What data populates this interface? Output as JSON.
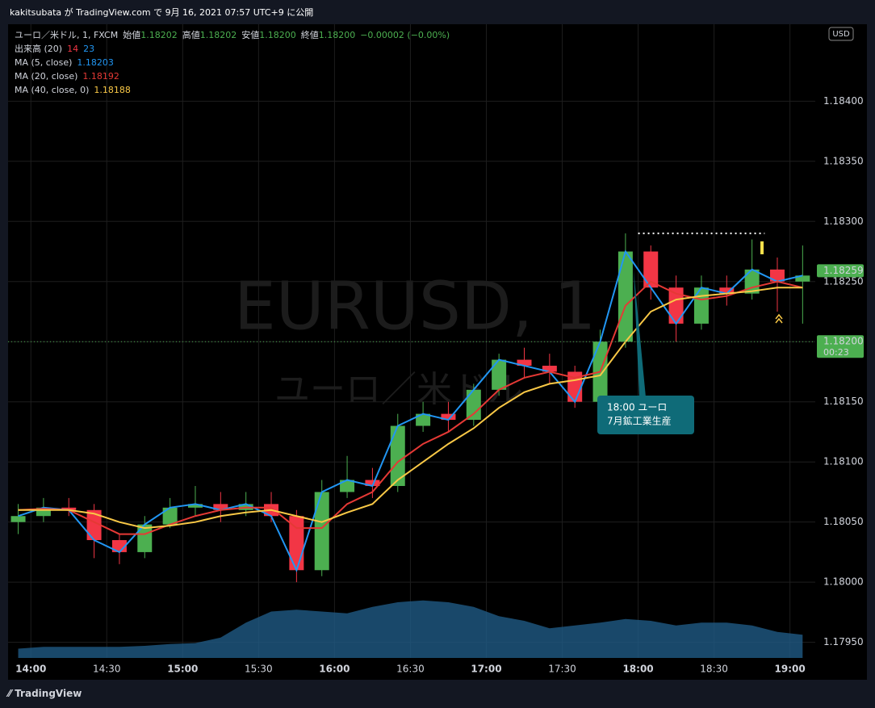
{
  "header": {
    "credit": "kakitsubata が TradingView.com で 9月 16, 2021 07:57 UTC+9 に公開"
  },
  "legend": {
    "symbol": "ユーロ／米ドル, 1, FXCM",
    "open_label": "始値",
    "open": "1.18202",
    "high_label": "高値",
    "high": "1.18202",
    "low_label": "安値",
    "low": "1.18200",
    "close_label": "終値",
    "close": "1.18200",
    "change": "−0.00002 (−0.00%)",
    "volume_label": "出来高 (20)",
    "volume_a": "14",
    "volume_b": "23"
  },
  "watermark": {
    "symbol": "EURUSD, 1",
    "name": "ユーロ／米ドル"
  },
  "currency": "USD",
  "annotation": {
    "line1": "18:00 ユーロ",
    "line2": "7月鉱工業生産"
  },
  "footer": "TradingView",
  "chart_data": {
    "type": "candlestick",
    "x": [
      "13:55",
      "14:05",
      "14:15",
      "14:25",
      "14:35",
      "14:45",
      "14:55",
      "15:05",
      "15:15",
      "15:25",
      "15:35",
      "15:45",
      "15:55",
      "16:05",
      "16:15",
      "16:25",
      "16:35",
      "16:45",
      "16:55",
      "17:05",
      "17:15",
      "17:25",
      "17:35",
      "17:45",
      "17:55",
      "18:05",
      "18:15",
      "18:25",
      "18:35",
      "18:45",
      "18:55",
      "19:05"
    ],
    "open": [
      1.1805,
      1.18055,
      1.18062,
      1.1806,
      1.18035,
      1.18025,
      1.18048,
      1.18062,
      1.18065,
      1.1806,
      1.18065,
      1.18055,
      1.1801,
      1.18075,
      1.18085,
      1.1808,
      1.1813,
      1.1814,
      1.18135,
      1.1816,
      1.18185,
      1.1818,
      1.18175,
      1.1815,
      1.182,
      1.18275,
      1.18245,
      1.18215,
      1.18245,
      1.1824,
      1.1826,
      1.1825
    ],
    "high": [
      1.18065,
      1.1807,
      1.1807,
      1.18065,
      1.1804,
      1.18055,
      1.1807,
      1.1808,
      1.18075,
      1.18075,
      1.18075,
      1.1806,
      1.18085,
      1.18105,
      1.18095,
      1.1814,
      1.1815,
      1.1815,
      1.18165,
      1.1819,
      1.18195,
      1.1819,
      1.1818,
      1.1821,
      1.1829,
      1.1828,
      1.18255,
      1.18255,
      1.18255,
      1.18285,
      1.1827,
      1.1828
    ],
    "low": [
      1.1804,
      1.1805,
      1.18055,
      1.1802,
      1.18015,
      1.1802,
      1.18045,
      1.18055,
      1.1805,
      1.18055,
      1.1805,
      1.18,
      1.18005,
      1.1807,
      1.1807,
      1.18075,
      1.18125,
      1.18125,
      1.1813,
      1.18155,
      1.1817,
      1.18165,
      1.18145,
      1.18145,
      1.18195,
      1.18235,
      1.182,
      1.1821,
      1.1823,
      1.18235,
      1.18225,
      1.18215
    ],
    "close": [
      1.18055,
      1.18062,
      1.1806,
      1.18035,
      1.18025,
      1.18048,
      1.18062,
      1.18065,
      1.1806,
      1.18065,
      1.18055,
      1.1801,
      1.18075,
      1.18085,
      1.1808,
      1.1813,
      1.1814,
      1.18135,
      1.1816,
      1.18185,
      1.1818,
      1.18175,
      1.1815,
      1.182,
      1.18275,
      1.18245,
      1.18215,
      1.18245,
      1.1824,
      1.1826,
      1.1825,
      1.18255
    ],
    "up_color": "#4caf50",
    "down_color": "#f23645",
    "series": [
      {
        "name": "MA (5, close)",
        "last_label": "1.18203",
        "color": "#2196f3",
        "values": [
          1.18055,
          1.18062,
          1.1806,
          1.18035,
          1.18025,
          1.18048,
          1.18062,
          1.18065,
          1.1806,
          1.18065,
          1.18055,
          1.1801,
          1.18075,
          1.18085,
          1.1808,
          1.1813,
          1.1814,
          1.18135,
          1.1816,
          1.18185,
          1.1818,
          1.18175,
          1.1815,
          1.182,
          1.18275,
          1.18245,
          1.18215,
          1.18245,
          1.1824,
          1.1826,
          1.1825,
          1.18255
        ]
      },
      {
        "name": "MA (20, close)",
        "last_label": "1.18192",
        "color": "#e53935",
        "values": [
          1.1806,
          1.18061,
          1.1806,
          1.1805,
          1.1804,
          1.1804,
          1.18048,
          1.18055,
          1.1806,
          1.18062,
          1.18062,
          1.18045,
          1.18045,
          1.18065,
          1.18075,
          1.181,
          1.18115,
          1.18125,
          1.1814,
          1.1816,
          1.1817,
          1.18175,
          1.1817,
          1.18175,
          1.1823,
          1.1825,
          1.1824,
          1.18235,
          1.18238,
          1.18245,
          1.1825,
          1.18245
        ]
      },
      {
        "name": "MA (40, close, 0)",
        "last_label": "1.18188",
        "color": "#f9c846",
        "values": [
          1.1806,
          1.1806,
          1.1806,
          1.18057,
          1.1805,
          1.18045,
          1.18047,
          1.1805,
          1.18055,
          1.18058,
          1.1806,
          1.18055,
          1.1805,
          1.18058,
          1.18065,
          1.18085,
          1.181,
          1.18115,
          1.18128,
          1.18145,
          1.18158,
          1.18165,
          1.18168,
          1.18172,
          1.182,
          1.18225,
          1.18235,
          1.18238,
          1.1824,
          1.18242,
          1.18245,
          1.18245
        ]
      }
    ],
    "volume": [
      10,
      12,
      12,
      12,
      12,
      13,
      15,
      16,
      22,
      38,
      50,
      52,
      50,
      48,
      55,
      60,
      62,
      60,
      55,
      45,
      40,
      32,
      35,
      38,
      42,
      40,
      35,
      38,
      38,
      35,
      28,
      25
    ],
    "volume_lim": [
      0,
      100
    ],
    "volume_color": "#1f5a85",
    "ylim": [
      1.17937,
      1.18464
    ],
    "yticks": [
      {
        "value": 1.1795,
        "label": "1.17950"
      },
      {
        "value": 1.18,
        "label": "1.18000"
      },
      {
        "value": 1.1805,
        "label": "1.18050"
      },
      {
        "value": 1.181,
        "label": "1.18100"
      },
      {
        "value": 1.1815,
        "label": "1.18150"
      },
      {
        "value": 1.182,
        "label": "1.18200"
      },
      {
        "value": 1.1825,
        "label": "1.18250"
      },
      {
        "value": 1.183,
        "label": "1.18300"
      },
      {
        "value": 1.1835,
        "label": "1.18350"
      },
      {
        "value": 1.184,
        "label": "1.18400"
      }
    ],
    "xlim": [
      "13:51",
      "19:10"
    ],
    "xticks": [
      "14:00",
      "14:30",
      "15:00",
      "15:30",
      "16:00",
      "16:30",
      "17:00",
      "17:30",
      "18:00",
      "18:30",
      "19:00"
    ],
    "grid": true,
    "price_labels": [
      {
        "value": 1.18259,
        "label": "1.18259"
      },
      {
        "value": 1.182,
        "label": "1.18200",
        "countdown": "00:23"
      }
    ],
    "resistance": {
      "value": 1.1829,
      "from": "18:00",
      "to": "18:50"
    }
  }
}
